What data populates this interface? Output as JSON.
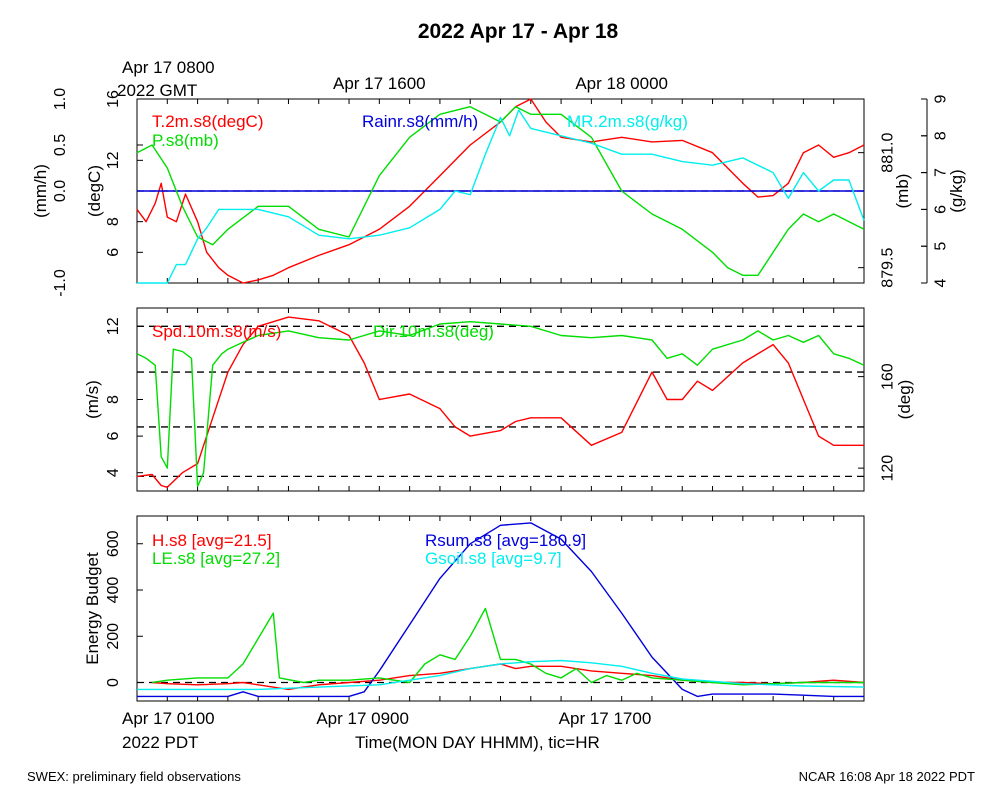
{
  "title": "2022 Apr 17 - Apr 18",
  "footer": {
    "left": "SWEX: preliminary field observations",
    "right": "NCAR 16:08 Apr 18 2022 PDT"
  },
  "colors": {
    "red": "#ff0000",
    "green": "#00dd00",
    "cyan": "#00eeee",
    "blue": "#0000dd",
    "black": "#000000"
  },
  "chart_data": [
    {
      "type": "line",
      "panel": "top",
      "gmt_label": {
        "line1": "Apr 17 0800",
        "line2": "2022 GMT"
      },
      "top_time_labels": [
        {
          "text": "Apr 17 1600",
          "hour": 8
        },
        {
          "text": "Apr 18 0000",
          "hour": 16
        }
      ],
      "xlim_hours": [
        0,
        24
      ],
      "axes": {
        "rain": {
          "label": "(mm/h)",
          "ylim": [
            -1.0,
            1.0
          ],
          "ticks": [
            -1.0,
            0.0,
            0.5,
            1.0
          ],
          "tick_labels": [
            "-1.0",
            "0.0",
            "0.5",
            "1.0"
          ]
        },
        "temp": {
          "label": "(degC)",
          "ylim": [
            4,
            16
          ],
          "ticks": [
            6,
            8,
            12,
            16
          ],
          "tick_labels": [
            "6",
            "8",
            "12",
            "16"
          ]
        },
        "pres": {
          "label": "(mb)",
          "ylim": [
            879.3,
            881.7
          ],
          "ticks": [
            879.5,
            881.0
          ],
          "tick_labels": [
            "879.5",
            "881.0"
          ]
        },
        "mr": {
          "label": "(g/kg)",
          "ylim": [
            4,
            9
          ],
          "ticks": [
            4,
            5,
            6,
            7,
            8,
            9
          ],
          "tick_labels": [
            "4",
            "5",
            "6",
            "7",
            "8",
            "9"
          ]
        }
      },
      "series": [
        {
          "name": "T.2m.s8(degC)",
          "color": "red",
          "axis": "temp",
          "x": [
            0,
            0.3,
            0.6,
            0.8,
            1.0,
            1.3,
            1.6,
            2.0,
            2.3,
            2.7,
            3.0,
            3.5,
            4.0,
            4.5,
            5.0,
            6.0,
            7.0,
            8.0,
            9.0,
            10.0,
            11.0,
            12.0,
            12.5,
            13.0,
            13.5,
            14.0,
            15.0,
            16.0,
            17.0,
            18.0,
            19.0,
            20.0,
            20.5,
            21.0,
            21.5,
            22.0,
            22.5,
            23.0,
            23.5,
            24.0
          ],
          "y": [
            8.8,
            8.0,
            9.2,
            10.5,
            8.3,
            8.0,
            9.8,
            8.0,
            6.0,
            5.0,
            4.5,
            4.0,
            4.2,
            4.5,
            5.0,
            5.8,
            6.5,
            7.5,
            9.0,
            11.0,
            13.0,
            14.5,
            15.5,
            16.0,
            14.5,
            13.5,
            13.2,
            13.5,
            13.2,
            13.3,
            12.5,
            10.5,
            9.6,
            9.7,
            10.5,
            12.5,
            13.0,
            12.2,
            12.5,
            13.0
          ]
        },
        {
          "name": "Rainr.s8(mm/h)",
          "color": "blue",
          "axis": "rain",
          "x": [
            0,
            24
          ],
          "y": [
            0.0,
            0.0
          ]
        },
        {
          "name": "P.s8(mb)",
          "color": "green",
          "axis": "pres",
          "x": [
            0,
            0.5,
            1.0,
            1.5,
            2.0,
            2.5,
            3.0,
            4.0,
            5.0,
            6.0,
            7.0,
            8.0,
            9.0,
            10.0,
            11.0,
            12.0,
            12.5,
            13.0,
            14.0,
            15.0,
            16.0,
            17.0,
            18.0,
            19.0,
            19.5,
            20.0,
            20.5,
            21.0,
            21.5,
            22.0,
            22.5,
            23.0,
            24.0
          ],
          "y": [
            881.0,
            881.1,
            880.8,
            880.3,
            879.9,
            879.8,
            880.0,
            880.3,
            880.3,
            880.0,
            879.9,
            880.7,
            881.2,
            881.5,
            881.6,
            881.4,
            881.6,
            881.5,
            881.5,
            881.2,
            880.5,
            880.2,
            880.0,
            879.7,
            879.5,
            879.4,
            879.4,
            879.7,
            880.0,
            880.2,
            880.1,
            880.2,
            880.0
          ]
        },
        {
          "name": "MR.2m.s8(g/kg)",
          "color": "cyan",
          "axis": "mr",
          "x": [
            0,
            0.5,
            1.0,
            1.3,
            1.6,
            2.0,
            2.3,
            2.7,
            3.0,
            3.5,
            4.0,
            5.0,
            6.0,
            7.0,
            8.0,
            9.0,
            10.0,
            10.5,
            11.0,
            11.5,
            12.0,
            12.3,
            12.6,
            13.0,
            14.0,
            15.0,
            16.0,
            17.0,
            18.0,
            19.0,
            20.0,
            21.0,
            21.5,
            22.0,
            22.5,
            23.0,
            23.5,
            24.0
          ],
          "y": [
            4.0,
            4.0,
            4.0,
            4.5,
            4.5,
            5.2,
            5.5,
            6.0,
            6.0,
            6.0,
            6.0,
            5.8,
            5.3,
            5.2,
            5.3,
            5.5,
            6.0,
            6.5,
            6.4,
            7.5,
            8.5,
            8.0,
            8.7,
            8.2,
            8.0,
            7.8,
            7.5,
            7.5,
            7.3,
            7.2,
            7.4,
            7.0,
            6.3,
            7.0,
            6.5,
            6.8,
            6.8,
            5.7
          ]
        }
      ],
      "reference_lines": [
        {
          "axis": "rain",
          "y": 0.0,
          "style": "dashed"
        }
      ]
    },
    {
      "type": "line",
      "panel": "middle",
      "xlim_hours": [
        0,
        24
      ],
      "axes": {
        "spd": {
          "label": "(m/s)",
          "ylim": [
            3,
            13
          ],
          "ticks": [
            4,
            6,
            8,
            12
          ],
          "tick_labels": [
            "4",
            "6",
            "8",
            "12"
          ]
        },
        "dir": {
          "label": "(deg)",
          "ylim": [
            110,
            190
          ],
          "ticks": [
            120,
            160
          ],
          "tick_labels": [
            "120",
            "160"
          ]
        }
      },
      "series": [
        {
          "name": "Spd.10m.s8(m/s)",
          "color": "red",
          "axis": "spd",
          "x": [
            0,
            0.5,
            0.8,
            1.0,
            1.5,
            2.0,
            2.5,
            3.0,
            3.5,
            4.0,
            5.0,
            6.0,
            7.0,
            7.5,
            8.0,
            9.0,
            10.0,
            10.5,
            11.0,
            12.0,
            12.5,
            13.0,
            14.0,
            15.0,
            16.0,
            17.0,
            17.5,
            18.0,
            18.5,
            19.0,
            20.0,
            21.0,
            21.5,
            22.0,
            22.5,
            23.0,
            24.0
          ],
          "y": [
            3.8,
            3.9,
            3.3,
            3.2,
            4.0,
            4.5,
            7.0,
            9.5,
            11.0,
            12.0,
            12.5,
            12.3,
            11.5,
            10.0,
            8.0,
            8.3,
            7.5,
            6.5,
            6.0,
            6.3,
            6.8,
            7.0,
            7.0,
            5.5,
            6.2,
            9.5,
            8.0,
            8.0,
            9.0,
            8.5,
            10.0,
            11.0,
            10.0,
            8.0,
            6.0,
            5.5,
            5.5
          ]
        },
        {
          "name": "Dir.10m.s8(deg)",
          "color": "green",
          "axis": "dir",
          "x": [
            0,
            0.3,
            0.6,
            0.8,
            1.0,
            1.2,
            1.5,
            1.8,
            2.0,
            2.2,
            2.5,
            2.8,
            3.0,
            3.5,
            4.0,
            5.0,
            6.0,
            7.0,
            8.0,
            9.0,
            10.0,
            11.0,
            12.0,
            13.0,
            14.0,
            15.0,
            16.0,
            17.0,
            17.5,
            18.0,
            18.5,
            19.0,
            20.0,
            20.5,
            21.0,
            21.5,
            22.0,
            22.5,
            23.0,
            23.5,
            24.0
          ],
          "y": [
            170,
            168,
            165,
            125,
            120,
            172,
            171,
            168,
            112,
            118,
            165,
            170,
            172,
            175,
            178,
            180,
            177,
            176,
            180,
            178,
            183,
            184,
            183,
            182,
            178,
            177,
            178,
            176,
            168,
            170,
            165,
            172,
            176,
            180,
            176,
            178,
            175,
            178,
            170,
            168,
            165
          ]
        }
      ],
      "reference_lines": [
        {
          "axis": "spd",
          "y": 3.8,
          "style": "dashed"
        },
        {
          "axis": "spd",
          "y": 6.5,
          "style": "dashed"
        },
        {
          "axis": "spd",
          "y": 9.5,
          "style": "dashed"
        },
        {
          "axis": "spd",
          "y": 12.0,
          "style": "dashed"
        }
      ]
    },
    {
      "type": "line",
      "panel": "bottom",
      "xlim_hours": [
        0,
        24
      ],
      "x_tick_labels": [
        {
          "text": "Apr 17 0100",
          "hour": 0
        },
        {
          "text": "Apr 17 0900",
          "hour": 8
        },
        {
          "text": "Apr 17 1700",
          "hour": 16
        }
      ],
      "pdt_label": "2022 PDT",
      "xlabel": "Time(MON DAY HHMM), tic=HR",
      "axes": {
        "energy": {
          "label": "Energy Budget",
          "ylim": [
            -80,
            720
          ],
          "ticks": [
            0,
            200,
            400,
            600
          ],
          "tick_labels": [
            "0",
            "200",
            "400",
            "600"
          ]
        }
      },
      "series": [
        {
          "name": "H.s8 [avg=21.5]",
          "color": "red",
          "axis": "energy",
          "x": [
            0.5,
            1.0,
            2.0,
            3.0,
            3.5,
            5.0,
            5.5,
            6.0,
            7.0,
            8.0,
            9.0,
            10.0,
            11.0,
            12.0,
            12.5,
            13.0,
            14.0,
            15.0,
            16.0,
            17.0,
            18.0,
            19.0,
            20.0,
            21.0,
            22.0,
            23.0,
            24.0
          ],
          "y": [
            0,
            -5,
            -10,
            -5,
            0,
            -30,
            -20,
            -10,
            0,
            10,
            30,
            40,
            60,
            80,
            60,
            70,
            70,
            50,
            40,
            30,
            10,
            0,
            0,
            -5,
            0,
            10,
            0
          ]
        },
        {
          "name": "Rsum.s8 [avg=180.9]",
          "color": "blue",
          "axis": "energy",
          "x": [
            0,
            1.0,
            2.0,
            3.0,
            3.5,
            4.0,
            5.0,
            6.0,
            7.0,
            7.5,
            8.0,
            9.0,
            10.0,
            11.0,
            12.0,
            13.0,
            14.0,
            15.0,
            16.0,
            17.0,
            18.0,
            18.5,
            19.0,
            20.0,
            21.0,
            22.0,
            23.0,
            24.0
          ],
          "y": [
            -60,
            -60,
            -60,
            -60,
            -40,
            -60,
            -60,
            -60,
            -60,
            -40,
            50,
            250,
            450,
            600,
            680,
            690,
            620,
            480,
            300,
            110,
            -30,
            -60,
            -50,
            -50,
            -50,
            -55,
            -60,
            -60
          ]
        },
        {
          "name": "LE.s8 [avg=27.2]",
          "color": "green",
          "axis": "energy",
          "x": [
            0.5,
            1.0,
            2.0,
            3.0,
            3.5,
            4.5,
            4.7,
            5.5,
            6.0,
            7.0,
            8.0,
            9.0,
            9.5,
            10.0,
            10.5,
            11.0,
            11.5,
            12.0,
            12.5,
            13.0,
            13.5,
            14.0,
            14.5,
            15.0,
            15.5,
            16.0,
            16.5,
            17.0,
            18.0,
            19.0,
            20.0,
            21.0,
            22.0,
            23.0,
            24.0
          ],
          "y": [
            0,
            10,
            20,
            20,
            80,
            300,
            20,
            0,
            10,
            10,
            20,
            0,
            80,
            120,
            100,
            200,
            320,
            100,
            100,
            80,
            40,
            20,
            60,
            0,
            30,
            10,
            40,
            20,
            10,
            0,
            -10,
            -5,
            0,
            0,
            0
          ]
        },
        {
          "name": "Gsoil.s8 [avg=9.7]",
          "color": "cyan",
          "axis": "energy",
          "x": [
            0,
            2.0,
            4.0,
            6.0,
            8.0,
            9.0,
            10.0,
            11.0,
            12.0,
            13.0,
            14.0,
            15.0,
            16.0,
            17.0,
            18.0,
            20.0,
            22.0,
            24.0
          ],
          "y": [
            -30,
            -30,
            -30,
            -20,
            -10,
            10,
            30,
            60,
            80,
            90,
            95,
            85,
            70,
            40,
            15,
            -5,
            -15,
            -20
          ]
        }
      ],
      "reference_lines": [
        {
          "axis": "energy",
          "y": 0,
          "style": "dashed"
        }
      ]
    }
  ]
}
